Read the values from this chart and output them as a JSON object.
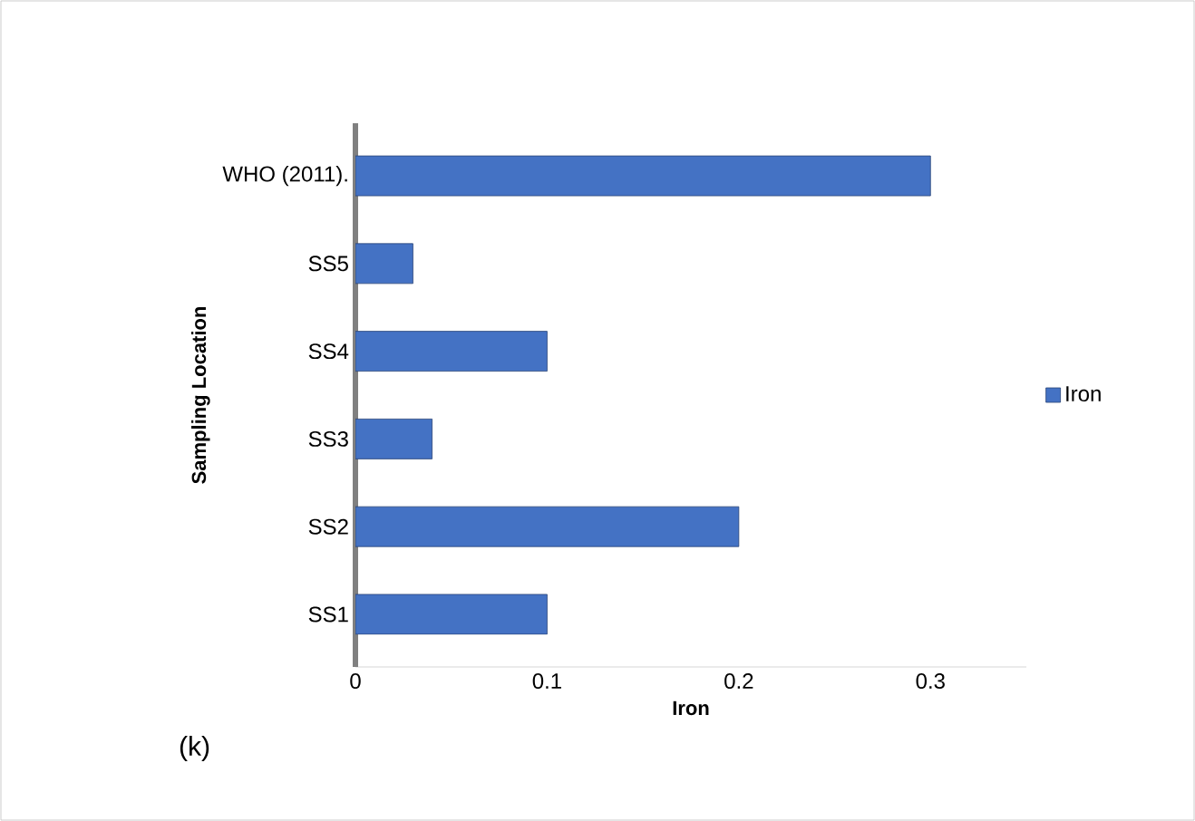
{
  "chart_data": {
    "type": "bar",
    "orientation": "horizontal",
    "xlabel": "Iron",
    "ylabel": "Sampling Location",
    "categories": [
      "WHO (2011).",
      "SS5",
      "SS4",
      "SS3",
      "SS2",
      "SS1"
    ],
    "series": [
      {
        "name": "Iron",
        "color": "#4472c4",
        "values": [
          0.3,
          0.03,
          0.1,
          0.04,
          0.2,
          0.1
        ]
      }
    ],
    "xlim": [
      0,
      0.35
    ],
    "xticks": [
      0,
      0.1,
      0.2,
      0.3
    ],
    "grid": false,
    "legend": "right",
    "annotations": [
      "(k)"
    ]
  }
}
